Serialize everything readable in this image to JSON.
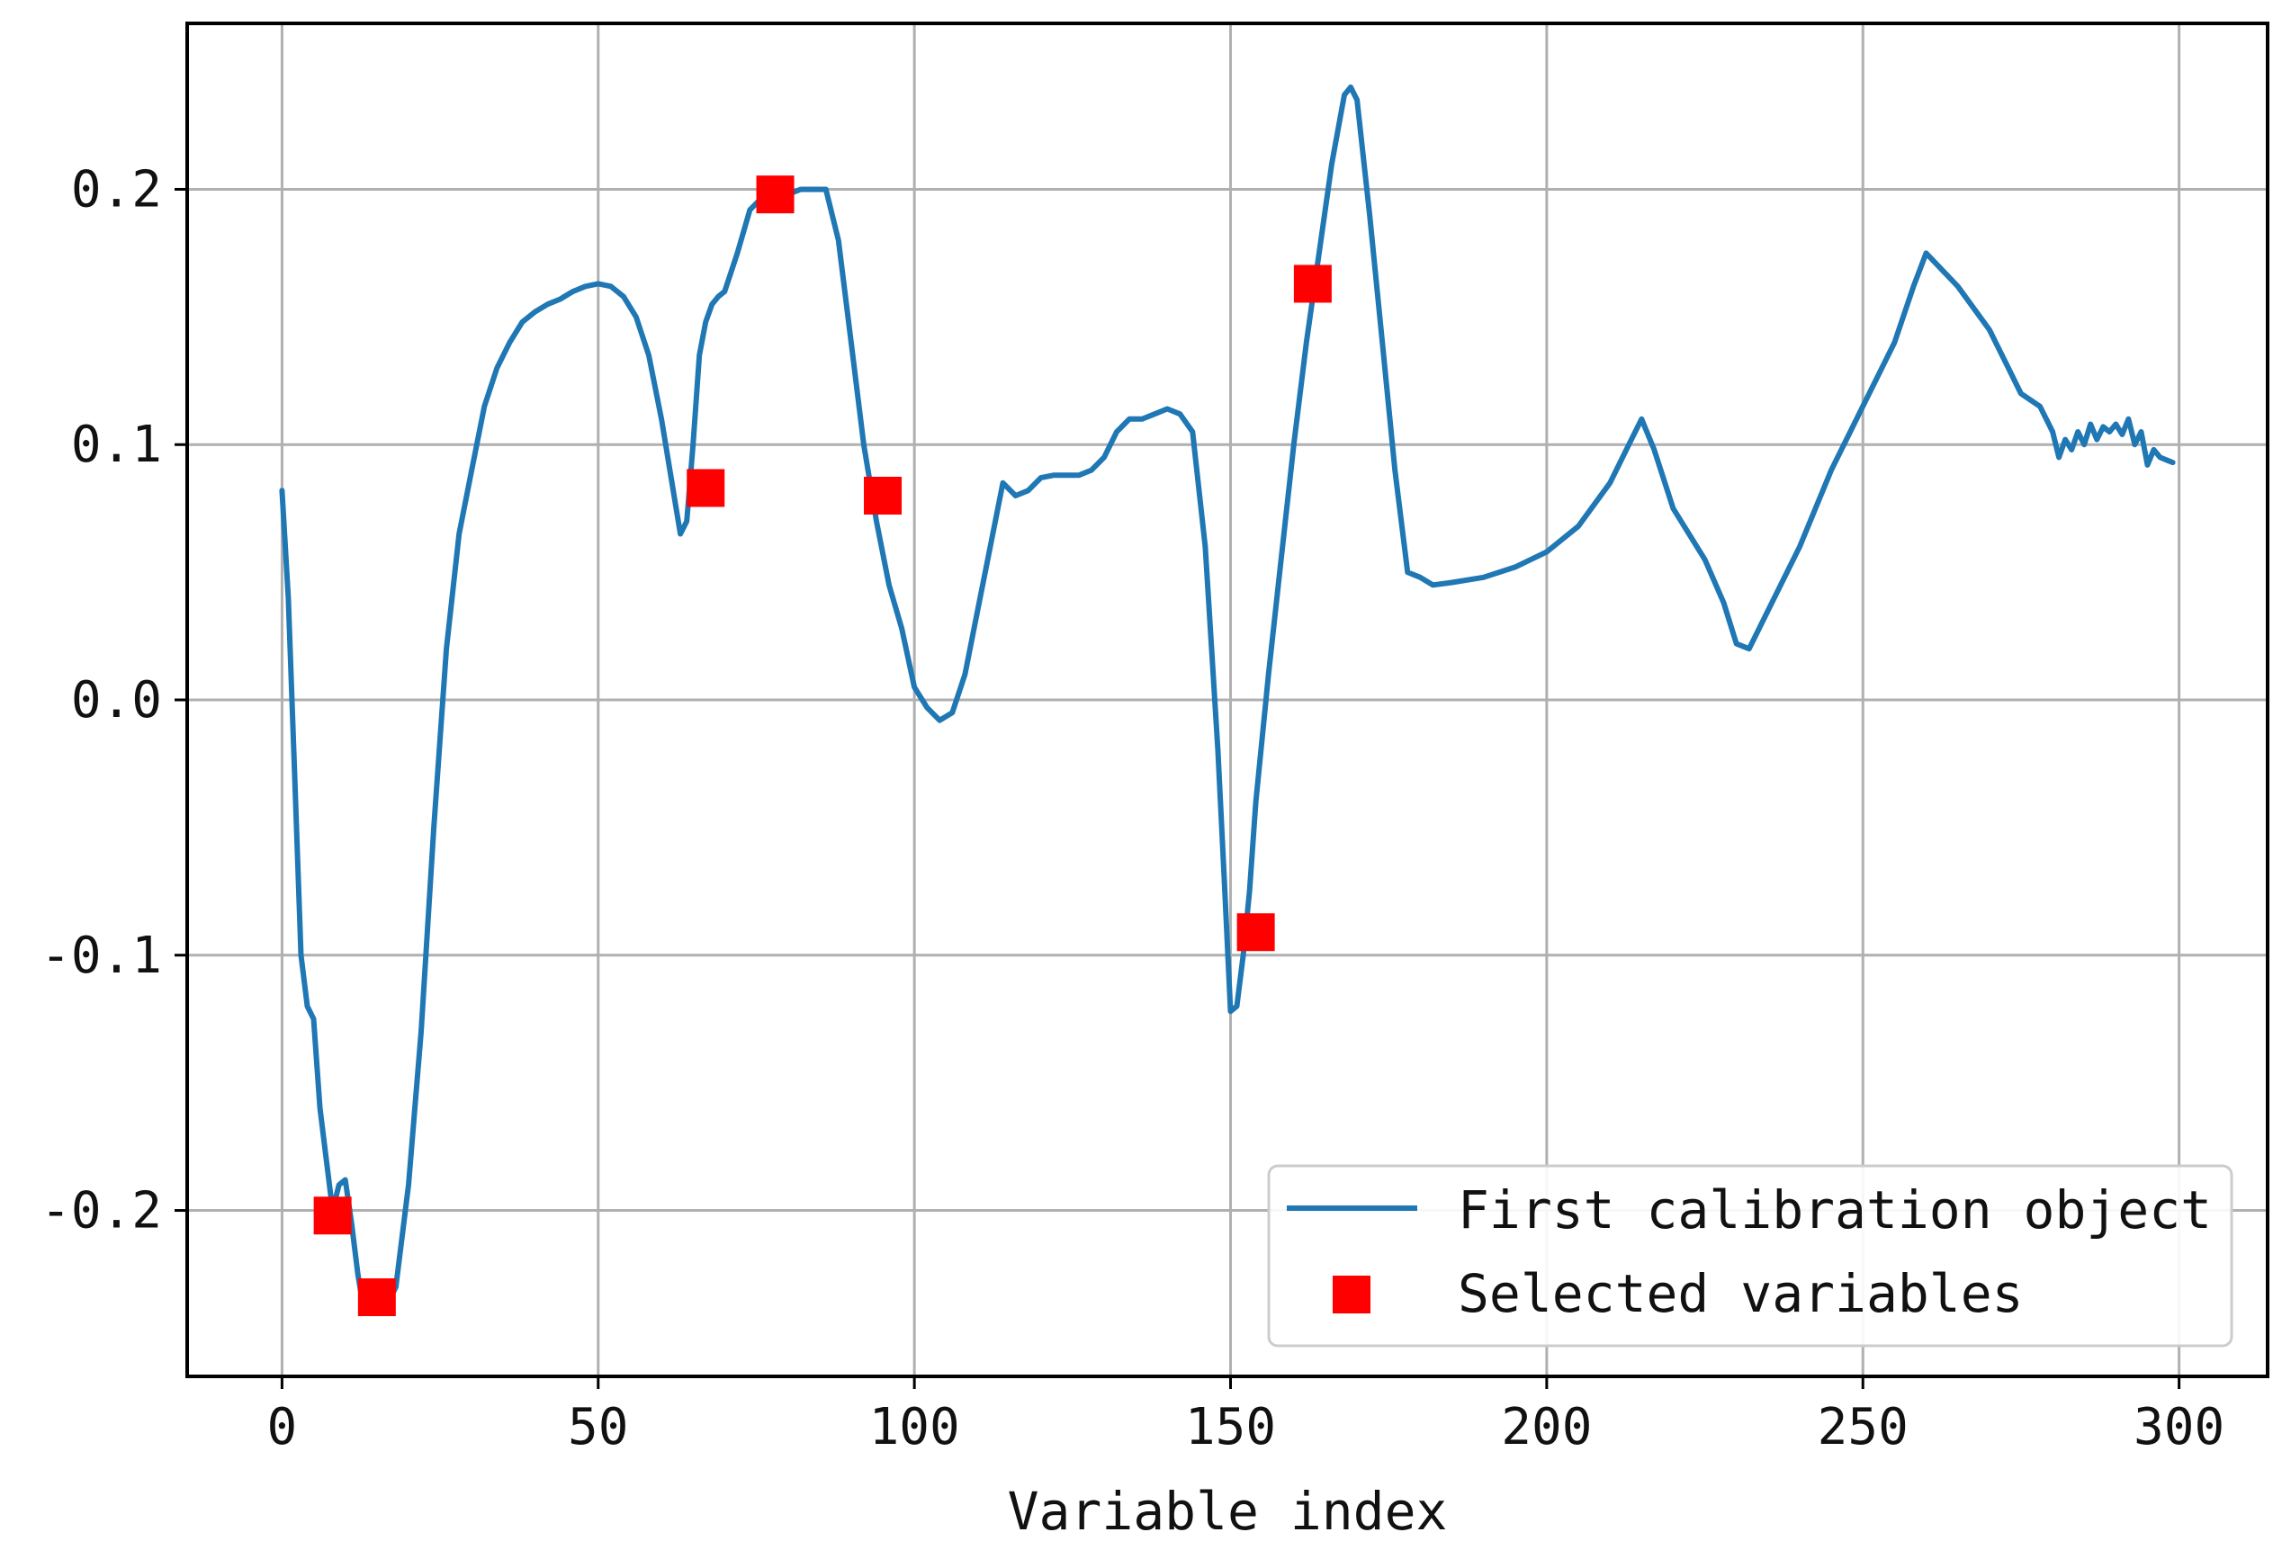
{
  "chart_data": {
    "type": "line",
    "title": "",
    "xlabel": "Variable index",
    "ylabel": "",
    "xlim": [
      -15,
      314
    ],
    "ylim": [
      -0.265,
      0.265
    ],
    "grid": true,
    "legend_position": "lower-right",
    "x_ticks": [
      0,
      50,
      100,
      150,
      200,
      250,
      300
    ],
    "x_tick_labels": [
      "0",
      "50",
      "100",
      "150",
      "200",
      "250",
      "300"
    ],
    "y_ticks": [
      -0.2,
      -0.1,
      0.0,
      0.1,
      0.2
    ],
    "y_tick_labels": [
      "-0.2",
      "-0.1",
      "0.0",
      "0.1",
      "0.2"
    ],
    "series": [
      {
        "name": "First calibration object",
        "kind": "line",
        "color": "#1f77b4",
        "x": [
          0,
          1,
          2,
          3,
          4,
          5,
          6,
          7,
          8,
          9,
          10,
          11,
          12,
          13,
          14,
          16,
          18,
          20,
          22,
          24,
          26,
          28,
          30,
          32,
          34,
          36,
          38,
          40,
          42,
          44,
          46,
          48,
          50,
          52,
          54,
          56,
          58,
          60,
          62,
          63,
          64,
          65,
          66,
          67,
          68,
          69,
          70,
          72,
          74,
          76,
          78,
          80,
          82,
          84,
          86,
          88,
          90,
          92,
          94,
          96,
          98,
          100,
          102,
          104,
          106,
          108,
          110,
          112,
          114,
          116,
          118,
          120,
          122,
          124,
          126,
          128,
          130,
          132,
          134,
          136,
          138,
          140,
          142,
          144,
          146,
          148,
          149,
          150,
          151,
          152,
          153,
          154,
          156,
          158,
          160,
          162,
          164,
          166,
          168,
          169,
          170,
          172,
          174,
          176,
          178,
          180,
          182,
          185,
          190,
          195,
          200,
          205,
          210,
          213,
          215,
          217,
          220,
          225,
          228,
          230,
          232,
          235,
          240,
          245,
          250,
          255,
          258,
          260,
          265,
          270,
          273,
          275,
          278,
          280,
          281,
          282,
          283,
          284,
          285,
          286,
          287,
          288,
          289,
          290,
          291,
          292,
          293,
          294,
          295,
          296,
          297,
          298,
          299
        ],
        "y": [
          0.082,
          0.04,
          -0.03,
          -0.1,
          -0.12,
          -0.125,
          -0.16,
          -0.18,
          -0.2,
          -0.19,
          -0.188,
          -0.205,
          -0.225,
          -0.24,
          -0.24,
          -0.24,
          -0.23,
          -0.19,
          -0.13,
          -0.05,
          0.02,
          0.065,
          0.09,
          0.115,
          0.13,
          0.14,
          0.148,
          0.152,
          0.155,
          0.157,
          0.16,
          0.162,
          0.163,
          0.162,
          0.158,
          0.15,
          0.135,
          0.11,
          0.08,
          0.065,
          0.07,
          0.1,
          0.135,
          0.148,
          0.155,
          0.158,
          0.16,
          0.175,
          0.192,
          0.197,
          0.198,
          0.198,
          0.2,
          0.2,
          0.2,
          0.18,
          0.14,
          0.1,
          0.07,
          0.045,
          0.028,
          0.005,
          -0.003,
          -0.008,
          -0.005,
          0.01,
          0.035,
          0.06,
          0.085,
          0.08,
          0.082,
          0.087,
          0.088,
          0.088,
          0.088,
          0.09,
          0.095,
          0.105,
          0.11,
          0.11,
          0.112,
          0.114,
          0.112,
          0.105,
          0.06,
          -0.02,
          -0.07,
          -0.122,
          -0.12,
          -0.1,
          -0.075,
          -0.04,
          0.01,
          0.055,
          0.1,
          0.14,
          0.175,
          0.21,
          0.237,
          0.24,
          0.235,
          0.19,
          0.14,
          0.09,
          0.05,
          0.048,
          0.045,
          0.046,
          0.048,
          0.052,
          0.058,
          0.068,
          0.085,
          0.1,
          0.11,
          0.098,
          0.075,
          0.055,
          0.038,
          0.022,
          0.02,
          0.035,
          0.06,
          0.09,
          0.115,
          0.14,
          0.162,
          0.175,
          0.162,
          0.145,
          0.13,
          0.12,
          0.115,
          0.105,
          0.095,
          0.102,
          0.098,
          0.105,
          0.1,
          0.108,
          0.102,
          0.107,
          0.105,
          0.108,
          0.104,
          0.11,
          0.1,
          0.105,
          0.092,
          0.098,
          0.095,
          0.094,
          0.093
        ]
      },
      {
        "name": "Selected variables",
        "kind": "marker",
        "color": "#ff0000",
        "x": [
          8,
          15,
          67,
          78,
          95,
          154,
          163
        ],
        "y": [
          -0.202,
          -0.234,
          0.083,
          0.198,
          0.08,
          -0.091,
          0.163
        ]
      }
    ]
  }
}
